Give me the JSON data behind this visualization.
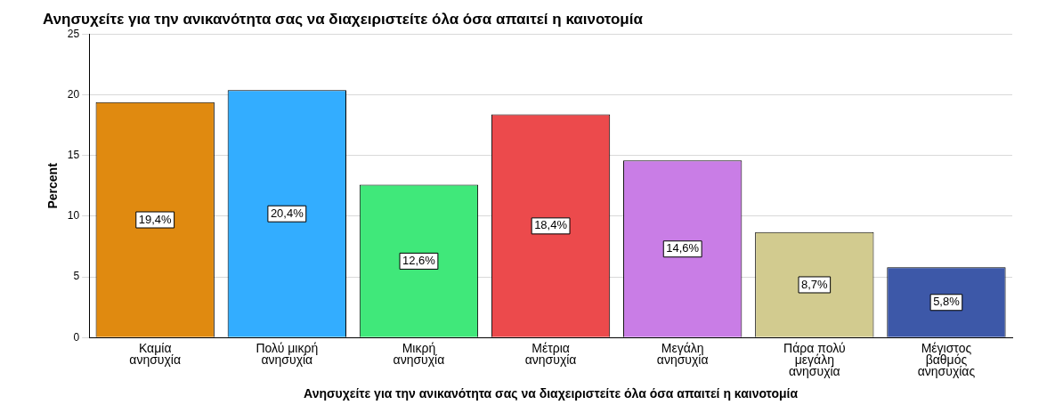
{
  "chart_data": {
    "type": "bar",
    "title": "Ανησυχείτε για την ανικανότητα σας να διαχειριστείτε όλα όσα απαιτεί η καινοτομία",
    "xlabel": "Ανησυχείτε για την ανικανότητα σας να διαχειριστείτε όλα όσα απαιτεί η καινοτομία",
    "ylabel": "Percent",
    "categories": [
      "Καμία ανησυχία",
      "Πολύ μικρή ανησυχία",
      "Μικρή ανησυχία",
      "Μέτρια ανησυχία",
      "Μεγάλη ανησυχία",
      "Πάρα πολύ μεγάλη ανησυχία",
      "Μέγιστος βαθμός ανησυχίας"
    ],
    "values": [
      19.4,
      20.4,
      12.6,
      18.4,
      14.6,
      8.7,
      5.8
    ],
    "colors": [
      "#e08a10",
      "#33adff",
      "#40e87a",
      "#ec4a4c",
      "#c97de6",
      "#d2cb8f",
      "#3d58a8"
    ],
    "value_labels": [
      "19,4%",
      "20,4%",
      "12,6%",
      "18,4%",
      "14,6%",
      "8,7%",
      "5,8%"
    ],
    "ylim": [
      0,
      25
    ],
    "yticks": [
      0,
      5,
      10,
      15,
      20,
      25
    ],
    "grid": "y",
    "legend": false
  }
}
